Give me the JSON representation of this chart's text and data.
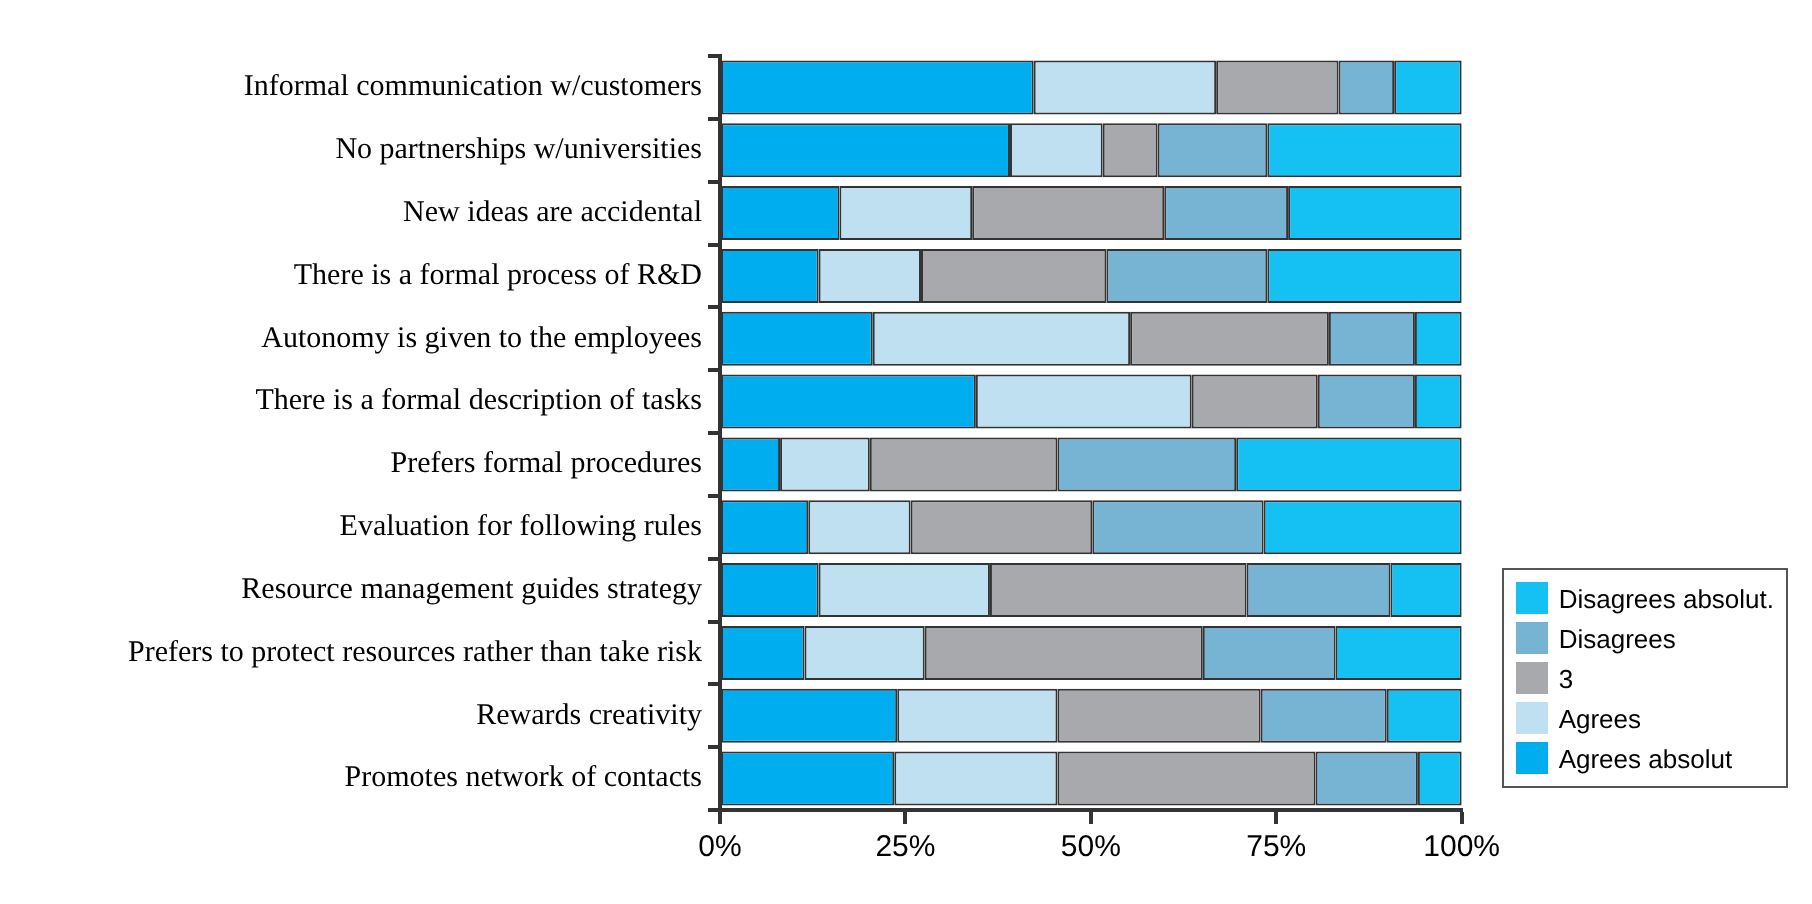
{
  "chart_data": {
    "type": "bar",
    "orientation": "horizontal",
    "stacked": true,
    "categories": [
      "Informal communication w/customers",
      "No partnerships w/universities",
      "New ideas are accidental",
      "There is a formal process of R&D",
      "Autonomy is given to the employees",
      "There is a formal description of tasks",
      "Prefers formal procedures",
      "Evaluation for following rules",
      "Resource management guides strategy",
      "Prefers to protect resources rather than take risk",
      "Rewards creativity",
      "Promotes network of contacts"
    ],
    "series": [
      {
        "name": "Agrees absolut",
        "color": "#00aeef",
        "values": [
          42.3,
          39.1,
          16.1,
          13.3,
          20.6,
          34.5,
          8.1,
          11.9,
          13.3,
          11.4,
          23.9,
          23.5
        ]
      },
      {
        "name": "Agrees",
        "color": "#bee0f0",
        "values": [
          24.6,
          12.5,
          17.9,
          13.8,
          34.7,
          29.1,
          12.1,
          13.8,
          23.1,
          16.2,
          21.6,
          22.0
        ]
      },
      {
        "name": "3",
        "color": "#a7a9ac",
        "values": [
          16.5,
          7.4,
          25.9,
          25.0,
          26.8,
          17.0,
          25.3,
          24.5,
          34.6,
          37.5,
          27.4,
          34.8
        ]
      },
      {
        "name": "Disagrees",
        "color": "#77b3d2",
        "values": [
          7.5,
          14.8,
          16.7,
          21.7,
          11.6,
          13.1,
          24.1,
          23.1,
          19.4,
          17.9,
          17.0,
          13.8
        ]
      },
      {
        "name": "Disagrees absolut.",
        "color": "#15c0f2",
        "values": [
          9.1,
          26.2,
          23.4,
          26.2,
          6.3,
          6.3,
          30.4,
          26.7,
          9.6,
          17.0,
          10.1,
          5.9
        ]
      }
    ],
    "xlim": [
      0,
      100
    ],
    "xticks": [
      {
        "value": 0,
        "label": "0%"
      },
      {
        "value": 25,
        "label": "25%"
      },
      {
        "value": 50,
        "label": "50%"
      },
      {
        "value": 75,
        "label": "75%"
      },
      {
        "value": 100,
        "label": "100%"
      }
    ],
    "grid": false,
    "legend": "bottom right"
  }
}
